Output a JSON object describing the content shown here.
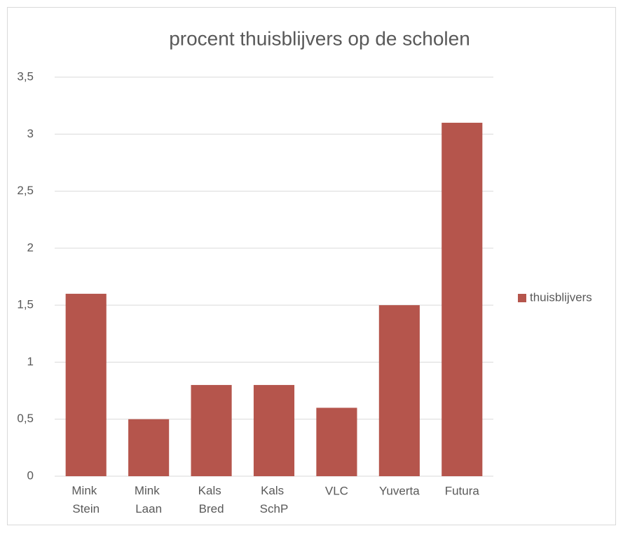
{
  "chart_data": {
    "type": "bar",
    "title": "procent thuisblijvers op de scholen",
    "categories": [
      "Mink Stein",
      "Mink Laan",
      "Kals Bred",
      "Kals SchP",
      "VLC",
      "Yuverta",
      "Futura"
    ],
    "series": [
      {
        "name": "thuisblijvers",
        "color": "#b5554c",
        "values": [
          1.6,
          0.5,
          0.8,
          0.8,
          0.6,
          1.5,
          3.1
        ]
      }
    ],
    "ylim": [
      0,
      3.5
    ],
    "yticks": [
      0,
      {
        "value": 0.5,
        "label": "0,5"
      },
      1,
      {
        "value": 1.5,
        "label": "1,5"
      },
      2,
      {
        "value": 2.5,
        "label": "2,5"
      },
      3,
      {
        "value": 3.5,
        "label": "3,5"
      }
    ],
    "grid": true,
    "legend": "right"
  }
}
